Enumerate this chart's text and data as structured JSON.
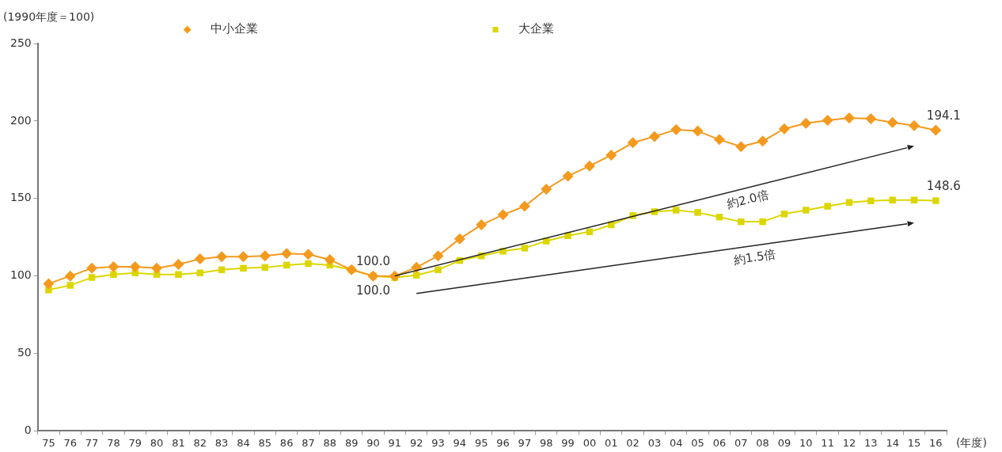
{
  "chart_data": {
    "type": "line",
    "ylabel": "(1990年度＝100)",
    "xlabel": "(年度)",
    "categories": [
      "75",
      "76",
      "77",
      "78",
      "79",
      "80",
      "81",
      "82",
      "83",
      "84",
      "85",
      "86",
      "87",
      "88",
      "89",
      "90",
      "91",
      "92",
      "93",
      "94",
      "95",
      "96",
      "97",
      "98",
      "99",
      "00",
      "01",
      "02",
      "03",
      "04",
      "05",
      "06",
      "07",
      "08",
      "09",
      "10",
      "11",
      "12",
      "13",
      "14",
      "15",
      "16"
    ],
    "series": [
      {
        "name": "中小企業",
        "color": "#f39a1e",
        "marker": "diamond",
        "values": [
          95,
          100,
          105,
          106,
          106,
          105,
          107.5,
          111,
          112.5,
          112.5,
          113,
          114.5,
          114,
          110.5,
          104,
          100,
          100,
          105.5,
          113,
          124,
          133,
          139.5,
          145,
          156,
          164.5,
          171,
          178,
          186,
          190,
          194.5,
          193.5,
          188,
          183.5,
          187,
          195,
          198.5,
          200.5,
          202,
          201.5,
          199,
          197,
          194.1
        ],
        "value_labels": [
          null,
          null,
          null,
          null,
          null,
          null,
          null,
          null,
          null,
          null,
          null,
          null,
          null,
          null,
          null,
          "100.0",
          null,
          null,
          null,
          null,
          null,
          null,
          null,
          null,
          null,
          null,
          null,
          null,
          null,
          null,
          null,
          null,
          null,
          null,
          null,
          null,
          null,
          null,
          null,
          null,
          null,
          "194.1"
        ]
      },
      {
        "name": "大企業",
        "color": "#dcd600",
        "marker": "square",
        "values": [
          91,
          94,
          99,
          101,
          102,
          101,
          101,
          102,
          104,
          105,
          105.5,
          107,
          108,
          107,
          104,
          100,
          99,
          100.5,
          104,
          110,
          113,
          116,
          118,
          122.5,
          126,
          128.5,
          133,
          139,
          141.5,
          142.5,
          141,
          138,
          135,
          135,
          140,
          142.5,
          145,
          147.5,
          148.5,
          149,
          149,
          148.6
        ],
        "value_labels": [
          null,
          null,
          null,
          null,
          null,
          null,
          null,
          null,
          null,
          null,
          null,
          null,
          null,
          null,
          null,
          "100.0",
          null,
          null,
          null,
          null,
          null,
          null,
          null,
          null,
          null,
          null,
          null,
          null,
          null,
          null,
          null,
          null,
          null,
          null,
          null,
          null,
          null,
          null,
          null,
          null,
          null,
          "148.6"
        ]
      }
    ],
    "ylim": [
      0,
      250
    ],
    "yticks": [
      0,
      50,
      100,
      150,
      200,
      250
    ],
    "grid": false,
    "legend": "top",
    "annotations": [
      "約2.0倍",
      "約1.5倍"
    ]
  }
}
